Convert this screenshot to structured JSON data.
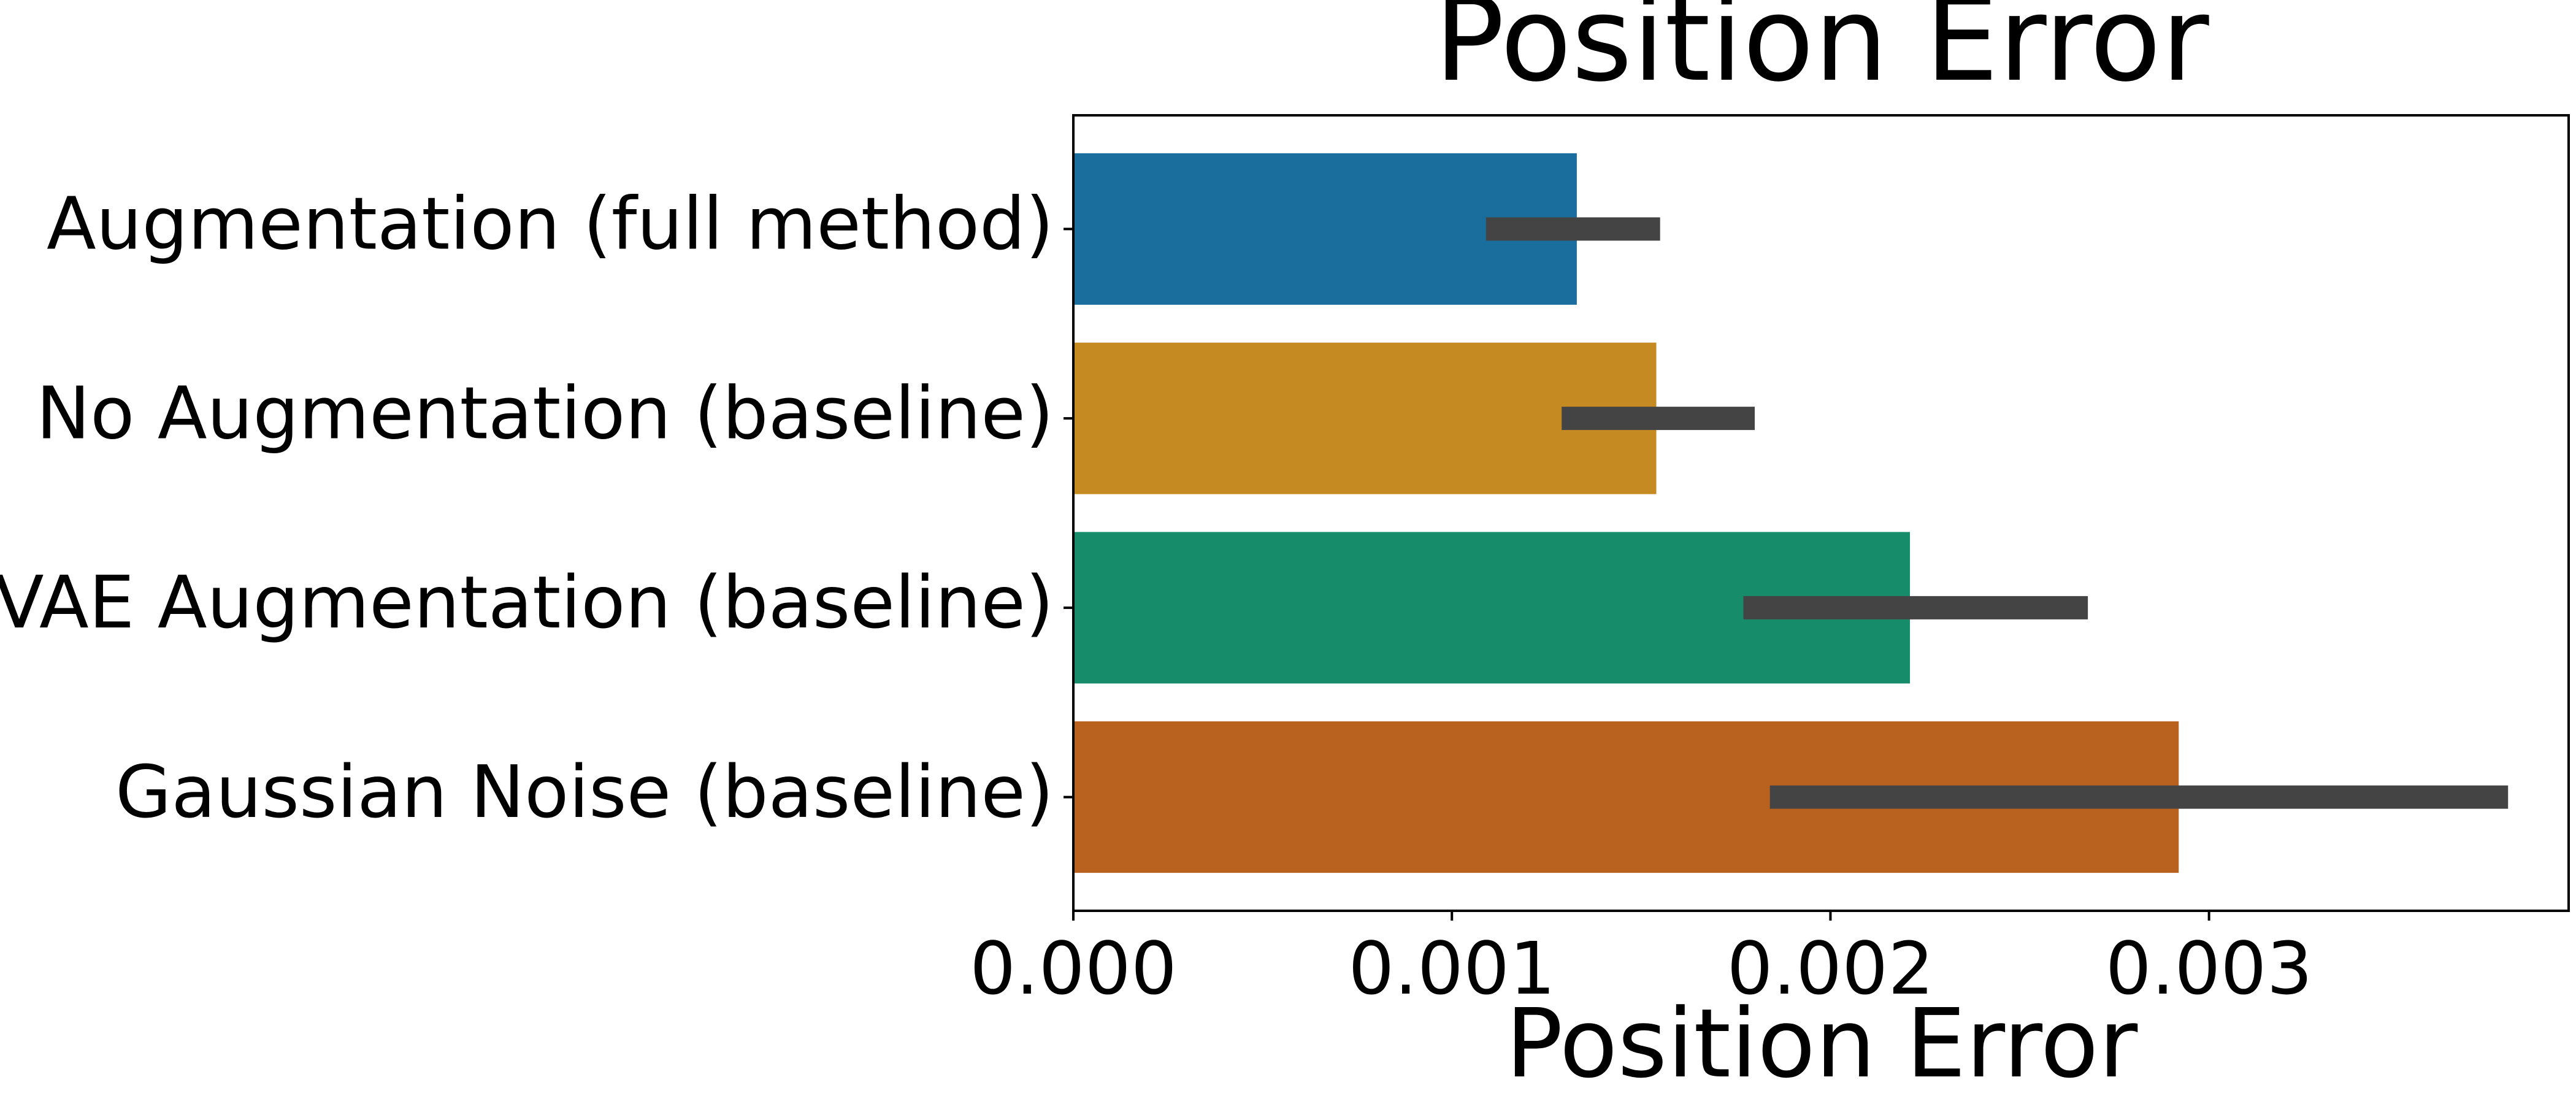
{
  "chart_data": {
    "type": "bar",
    "orientation": "horizontal",
    "title": "Position Error",
    "xlabel": "Position Error",
    "ylabel": "",
    "categories": [
      "Augmentation (full method)",
      "No Augmentation (baseline)",
      "VAE Augmentation (baseline)",
      "Gaussian Noise (baseline)"
    ],
    "values": [
      0.00133,
      0.00154,
      0.00221,
      0.00292
    ],
    "error_bars": [
      [
        0.00109,
        0.00155
      ],
      [
        0.00129,
        0.0018
      ],
      [
        0.00177,
        0.00268
      ],
      [
        0.00184,
        0.00379
      ]
    ],
    "colors": [
      "#1a6e9e",
      "#c58a22",
      "#178c6b",
      "#b9611e"
    ],
    "error_bar_color": "#444444",
    "xlim": [
      0,
      0.00395
    ],
    "xticks": [
      0,
      0.001,
      0.002,
      0.003
    ],
    "xtick_labels": [
      "0.000",
      "0.001",
      "0.002",
      "0.003"
    ],
    "grid": false,
    "legend": "none"
  }
}
